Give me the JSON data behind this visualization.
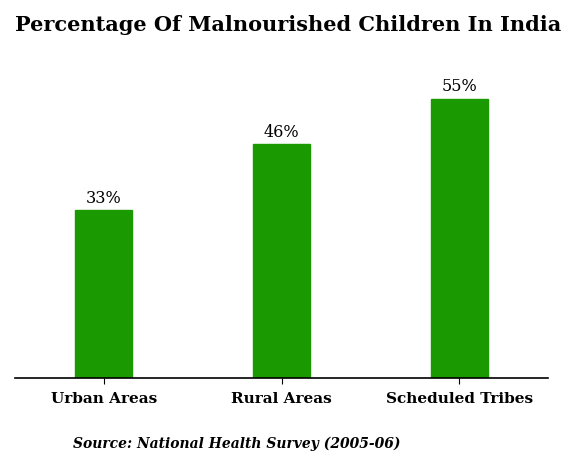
{
  "title": "Percentage Of Malnourished Children In India",
  "categories": [
    "Urban Areas",
    "Rural Areas",
    "Scheduled Tribes"
  ],
  "values": [
    33,
    46,
    55
  ],
  "bar_color": "#1a9a00",
  "label_format": [
    "33%",
    "46%",
    "55%"
  ],
  "source_text": "Source: National Health Survey (2005-06)",
  "ylim": [
    0,
    65
  ],
  "background_color": "#ffffff",
  "title_fontsize": 15,
  "label_fontsize": 11.5,
  "tick_fontsize": 11,
  "source_fontsize": 10,
  "bar_width": 0.32
}
